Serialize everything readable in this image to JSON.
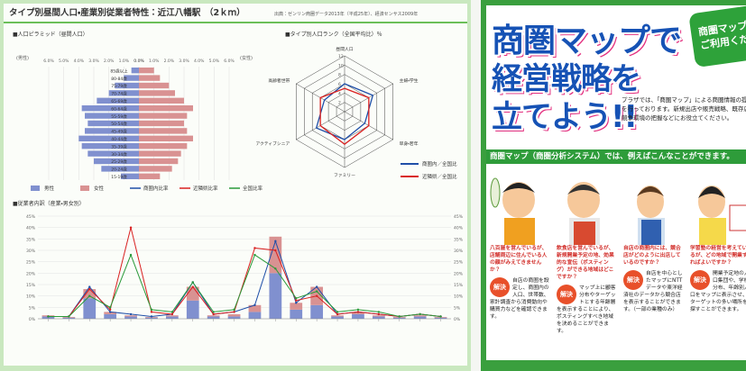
{
  "report": {
    "title": "タイプ別昼間人口・産業別従業者特性：近江八幡駅　（2ｋｍ）",
    "source": "出典：ゼンリン商圏データ2013年（平成25年）、経済センサス2009年",
    "pyramid": {
      "heading": "■人口ピラミッド（昼間人口）",
      "left_unit": "(男性)",
      "right_unit": "(女性)",
      "ages": [
        "85歳以上",
        "80-84歳",
        "75-79歳",
        "70-74歳",
        "65-69歳",
        "60-64歳",
        "55-59歳",
        "50-54歳",
        "45-49歳",
        "40-44歳",
        "35-39歳",
        "30-34歳",
        "25-29歳",
        "20-24歳",
        "15-19歳"
      ],
      "male": [
        0.5,
        1,
        1.6,
        2,
        2.8,
        3.8,
        3.6,
        3.4,
        3.6,
        4,
        3.8,
        3.4,
        3,
        2.5,
        1.2
      ],
      "female": [
        1,
        1.4,
        2,
        2.4,
        3,
        3.6,
        3.2,
        3,
        3.2,
        3.6,
        3.2,
        2.8,
        2.6,
        2.2,
        1.4
      ],
      "male_color": "#8090cf",
      "female_color": "#d99292",
      "xlim": [
        0,
        6
      ],
      "xticks": [
        {
          "value": 0,
          "label": "0.0%"
        },
        {
          "value": 1,
          "label": "1.0%"
        },
        {
          "value": 2,
          "label": "2.0%"
        },
        {
          "value": 3,
          "label": "3.0%"
        },
        {
          "value": 4,
          "label": "4.0%"
        },
        {
          "value": 5,
          "label": "5.0%"
        },
        {
          "value": 6,
          "label": "6.0%"
        }
      ]
    },
    "legend": [
      {
        "name": "男性",
        "color": "#8090cf",
        "kind": "box"
      },
      {
        "name": "女性",
        "color": "#d99292",
        "kind": "box"
      },
      {
        "name": "商圏内比率",
        "color": "#1f4fa8",
        "kind": "line"
      },
      {
        "name": "近隣県比率",
        "color": "#d92020",
        "kind": "line"
      },
      {
        "name": "全国比率",
        "color": "#2a9a3a",
        "kind": "line"
      }
    ],
    "radar": {
      "heading": "■タイプ別人口ランク（全国平均比）％",
      "axes": [
        "昼間人口",
        "主婦・学生",
        "単身・若年",
        "ファミリー",
        "アクティブシニア",
        "高齢者世帯"
      ],
      "rlim": [
        0,
        12
      ],
      "rticks": [
        2,
        4,
        6,
        8,
        10,
        12
      ],
      "series": [
        {
          "name": "商圏内／全国比",
          "color": "#1f4fa8",
          "values": [
            6,
            7,
            5,
            6,
            7,
            5
          ]
        },
        {
          "name": "近隣県／全国比",
          "color": "#d92020",
          "values": [
            5,
            6,
            6,
            7,
            6,
            6
          ]
        }
      ]
    },
    "employees": {
      "heading": "■従業者内訳（産業・男女別）",
      "categories": [
        null,
        null,
        null,
        null,
        null,
        null,
        null,
        null,
        null,
        null,
        null,
        null,
        null,
        null,
        null,
        null,
        null,
        null,
        null,
        null
      ],
      "ylim": [
        0,
        45
      ],
      "yticks": [
        {
          "value": 0,
          "label": "0%"
        },
        {
          "value": 5,
          "label": "5%"
        },
        {
          "value": 10,
          "label": "10%"
        },
        {
          "value": 15,
          "label": "15%"
        },
        {
          "value": 20,
          "label": "20%"
        },
        {
          "value": 25,
          "label": "25%"
        },
        {
          "value": 30,
          "label": "30%"
        },
        {
          "value": 35,
          "label": "35%"
        },
        {
          "value": 40,
          "label": "40%"
        },
        {
          "value": 45,
          "label": "45%"
        }
      ],
      "bars": [
        {
          "color": "#8090cf",
          "values": [
            1,
            0.5,
            9,
            2,
            1,
            0.5,
            1,
            8,
            1,
            1,
            3,
            20,
            4,
            6,
            1,
            2,
            1,
            0.5,
            1,
            0.5
          ]
        },
        {
          "color": "#d99292",
          "values": [
            0.5,
            0.3,
            4,
            1,
            0.5,
            0.3,
            0.5,
            6,
            0.5,
            1,
            3,
            16,
            3,
            8,
            0.5,
            1,
            0.5,
            0.3,
            0.5,
            0.3
          ]
        }
      ],
      "lines": [
        {
          "color": "#1f4fa8",
          "values": [
            1,
            1,
            14,
            3,
            2,
            1,
            2,
            16,
            2,
            3,
            6,
            34,
            7,
            14,
            2,
            3,
            2,
            1,
            2,
            1
          ]
        },
        {
          "color": "#d92020",
          "values": [
            1,
            1,
            13,
            4,
            40,
            3,
            2,
            14,
            2,
            3,
            31,
            30,
            8,
            10,
            2,
            3,
            2,
            1,
            2,
            1
          ]
        },
        {
          "color": "#2a9a3a",
          "values": [
            1,
            1,
            10,
            5,
            28,
            4,
            3,
            16,
            3,
            4,
            28,
            22,
            9,
            12,
            3,
            4,
            3,
            1,
            2,
            1
          ]
        }
      ]
    }
  },
  "brochure": {
    "title_lines": [
      "商圏マップで",
      "経営戦略を",
      "立てよう!!"
    ],
    "badge": [
      "商圏マップを",
      "ご利用くださ"
    ],
    "intro": "プラザでは、「商圏マップ」による商圏情報の提供を行っております。新規出店や販売戦略、既存店の競争環境の把握などにお役立てください。",
    "banner": "商圏マップ（商圏分析システム）では、例えばこんなことができます。",
    "solve": "解決",
    "columns": [
      {
        "question": "八百屋を営んでいるが、店舗周辺に住んでいる人の顔がみえてきませんか？",
        "answer": "自店の商圏を設定し、商圏内の人口、世帯数、家計調査から消費動向や購買力などを確認できます。"
      },
      {
        "question": "飲食店を営んでいるが、新規開業予定の地、効果的な宣伝（ポスティング）ができる地域はどこですか？",
        "answer": "マップ上に顧客分布やターゲットとする年齢層を表示することにより、ポスティングすべき地域を決めることができます。"
      },
      {
        "question": "自店の商圏内には、競合店がどのように出店しているのですか？",
        "answer": "自店を中心としたマップにNTTデータや東洋経済社のデータから競合店を表示することができます。（一部の業種のみ）"
      },
      {
        "question": "学習塾の経営を考えているが、どの地域で開業すればよいですか？",
        "answer": "開業予定地の人口集団や、学校分布、年齢別人口をマップに表示させ、ターゲットの多い場所を探すことができます。"
      }
    ]
  }
}
